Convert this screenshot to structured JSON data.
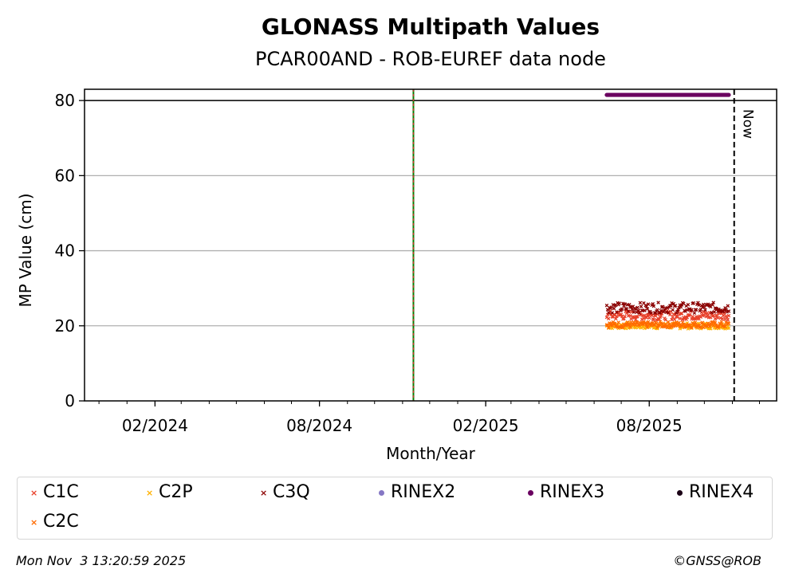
{
  "chart_data": {
    "type": "scatter",
    "title": "GLONASS Multipath Values",
    "subtitle": "PCAR00AND - ROB-EUREF data node",
    "xlabel": "Month/Year",
    "ylabel": "MP Value (cm)",
    "x_ticks": [
      "02/2024",
      "08/2024",
      "02/2025",
      "08/2025"
    ],
    "x_tick_dates": [
      "2024-02-01",
      "2024-08-01",
      "2025-02-01",
      "2025-08-01"
    ],
    "xlim": [
      "2023-11-15",
      "2025-12-20"
    ],
    "y_ticks": [
      0,
      20,
      40,
      60,
      80
    ],
    "ylim": [
      0,
      83
    ],
    "grid": "horizontal",
    "reference_line": {
      "y": 80,
      "color": "#000000"
    },
    "vertical_lines": [
      {
        "x": "2024-11-13",
        "colors": [
          "#008000",
          "#d62728"
        ],
        "style": "solid+dashed"
      },
      {
        "x": "2025-11-03",
        "color": "#000000",
        "style": "dashed",
        "label": "Now"
      }
    ],
    "series": [
      {
        "name": "C1C",
        "color": "#e8402a",
        "marker": "x",
        "x_range": [
          "2025-06-15",
          "2025-10-28"
        ],
        "mean": 22.8,
        "spread": 1.2
      },
      {
        "name": "C2P",
        "color": "#ffb000",
        "marker": "x",
        "x_range": [
          "2025-06-15",
          "2025-10-28"
        ],
        "mean": 20.0,
        "spread": 0.8
      },
      {
        "name": "C3Q",
        "color": "#8b0000",
        "marker": "x",
        "x_range": [
          "2025-06-15",
          "2025-10-28"
        ],
        "mean": 24.8,
        "spread": 1.4
      },
      {
        "name": "RINEX2",
        "color": "#8577c4",
        "marker": "o"
      },
      {
        "name": "RINEX3",
        "color": "#6a0060",
        "marker": "o",
        "x_range": [
          "2025-06-15",
          "2025-10-28"
        ],
        "mean": 81.5,
        "spread": 0
      },
      {
        "name": "RINEX4",
        "color": "#1a0015",
        "marker": "o"
      },
      {
        "name": "C2C",
        "color": "#ff6a00",
        "marker": "x",
        "x_range": [
          "2025-06-15",
          "2025-10-28"
        ],
        "mean": 20.3,
        "spread": 0.8
      }
    ]
  },
  "legend": {
    "items": [
      {
        "name": "C1C",
        "color": "#e8402a",
        "marker": "x"
      },
      {
        "name": "C2P",
        "color": "#ffb000",
        "marker": "x"
      },
      {
        "name": "C3Q",
        "color": "#8b0000",
        "marker": "x"
      },
      {
        "name": "RINEX2",
        "color": "#8577c4",
        "marker": "o"
      },
      {
        "name": "RINEX3",
        "color": "#6a0060",
        "marker": "o"
      },
      {
        "name": "RINEX4",
        "color": "#1a0015",
        "marker": "o"
      },
      {
        "name": "C2C",
        "color": "#ff6a00",
        "marker": "x"
      }
    ]
  },
  "footer": {
    "timestamp": "Mon Nov  3 13:20:59 2025",
    "copyright": "©GNSS@ROB"
  }
}
